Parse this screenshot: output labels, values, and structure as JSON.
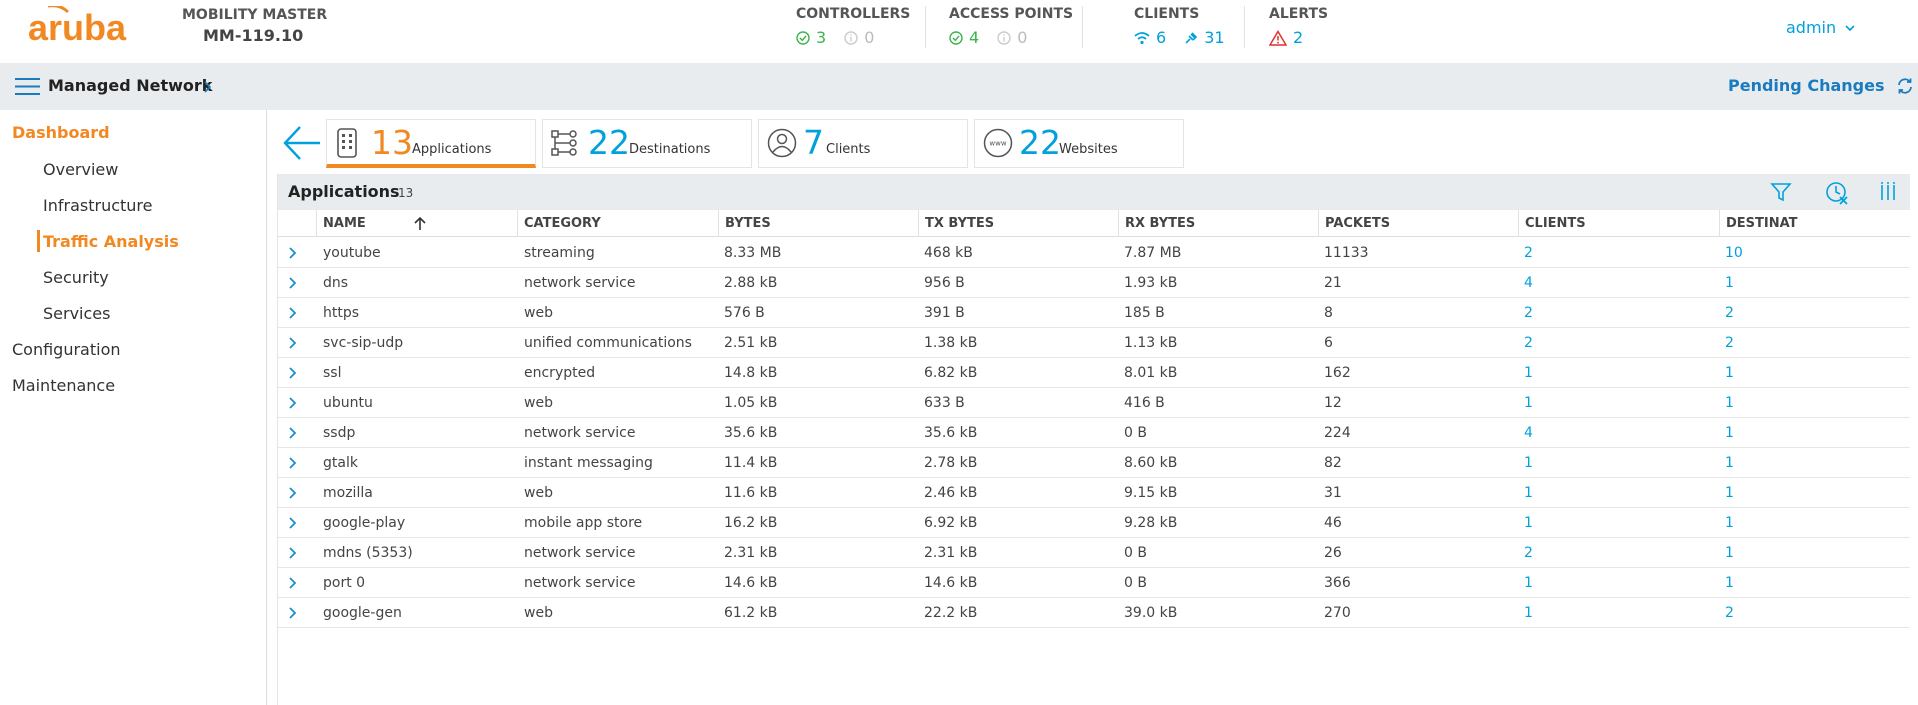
{
  "header": {
    "logo_text": "aruba",
    "mm_label": "MOBILITY MASTER",
    "mm_value": "MM-119.10",
    "controllers": {
      "label": "CONTROLLERS",
      "up": "3",
      "down": "0"
    },
    "access_points": {
      "label": "ACCESS POINTS",
      "up": "4",
      "down": "0"
    },
    "clients": {
      "label": "CLIENTS",
      "wireless": "6",
      "wired": "31"
    },
    "alerts": {
      "label": "ALERTS",
      "count": "2"
    },
    "user": "admin"
  },
  "subheader": {
    "title": "Managed Network",
    "pending": "Pending Changes"
  },
  "sidebar": {
    "dashboard": "Dashboard",
    "items": [
      "Overview",
      "Infrastructure",
      "Traffic Analysis",
      "Security",
      "Services"
    ],
    "configuration": "Configuration",
    "maintenance": "Maintenance"
  },
  "tabs": [
    {
      "count": "13",
      "label": "Applications"
    },
    {
      "count": "22",
      "label": "Destinations"
    },
    {
      "count": "7",
      "label": "Clients"
    },
    {
      "count": "22",
      "label": "Websites"
    }
  ],
  "panel": {
    "title": "Applications",
    "count": "13"
  },
  "columns": [
    "NAME",
    "CATEGORY",
    "BYTES",
    "TX BYTES",
    "RX BYTES",
    "PACKETS",
    "CLIENTS",
    "DESTINAT"
  ],
  "rows": [
    [
      "youtube",
      "streaming",
      "8.33 MB",
      "468 kB",
      "7.87 MB",
      "11133",
      "2",
      "10"
    ],
    [
      "dns",
      "network service",
      "2.88 kB",
      "956 B",
      "1.93 kB",
      "21",
      "4",
      "1"
    ],
    [
      "https",
      "web",
      "576 B",
      "391 B",
      "185 B",
      "8",
      "2",
      "2"
    ],
    [
      "svc-sip-udp",
      "unified communications",
      "2.51 kB",
      "1.38 kB",
      "1.13 kB",
      "6",
      "2",
      "2"
    ],
    [
      "ssl",
      "encrypted",
      "14.8 kB",
      "6.82 kB",
      "8.01 kB",
      "162",
      "1",
      "1"
    ],
    [
      "ubuntu",
      "web",
      "1.05 kB",
      "633 B",
      "416 B",
      "12",
      "1",
      "1"
    ],
    [
      "ssdp",
      "network service",
      "35.6 kB",
      "35.6 kB",
      "0 B",
      "224",
      "4",
      "1"
    ],
    [
      "gtalk",
      "instant messaging",
      "11.4 kB",
      "2.78 kB",
      "8.60 kB",
      "82",
      "1",
      "1"
    ],
    [
      "mozilla",
      "web",
      "11.6 kB",
      "2.46 kB",
      "9.15 kB",
      "31",
      "1",
      "1"
    ],
    [
      "google-play",
      "mobile app store",
      "16.2 kB",
      "6.92 kB",
      "9.28 kB",
      "46",
      "1",
      "1"
    ],
    [
      "mdns (5353)",
      "network service",
      "2.31 kB",
      "2.31 kB",
      "0 B",
      "26",
      "2",
      "1"
    ],
    [
      "port 0",
      "network service",
      "14.6 kB",
      "14.6 kB",
      "0 B",
      "366",
      "1",
      "1"
    ],
    [
      "google-gen",
      "web",
      "61.2 kB",
      "22.2 kB",
      "39.0 kB",
      "270",
      "1",
      "2"
    ]
  ],
  "colors": {
    "brand": "#f28822",
    "accent": "#01a1dd",
    "ok": "#3cb54a",
    "alert": "#e0312f"
  }
}
